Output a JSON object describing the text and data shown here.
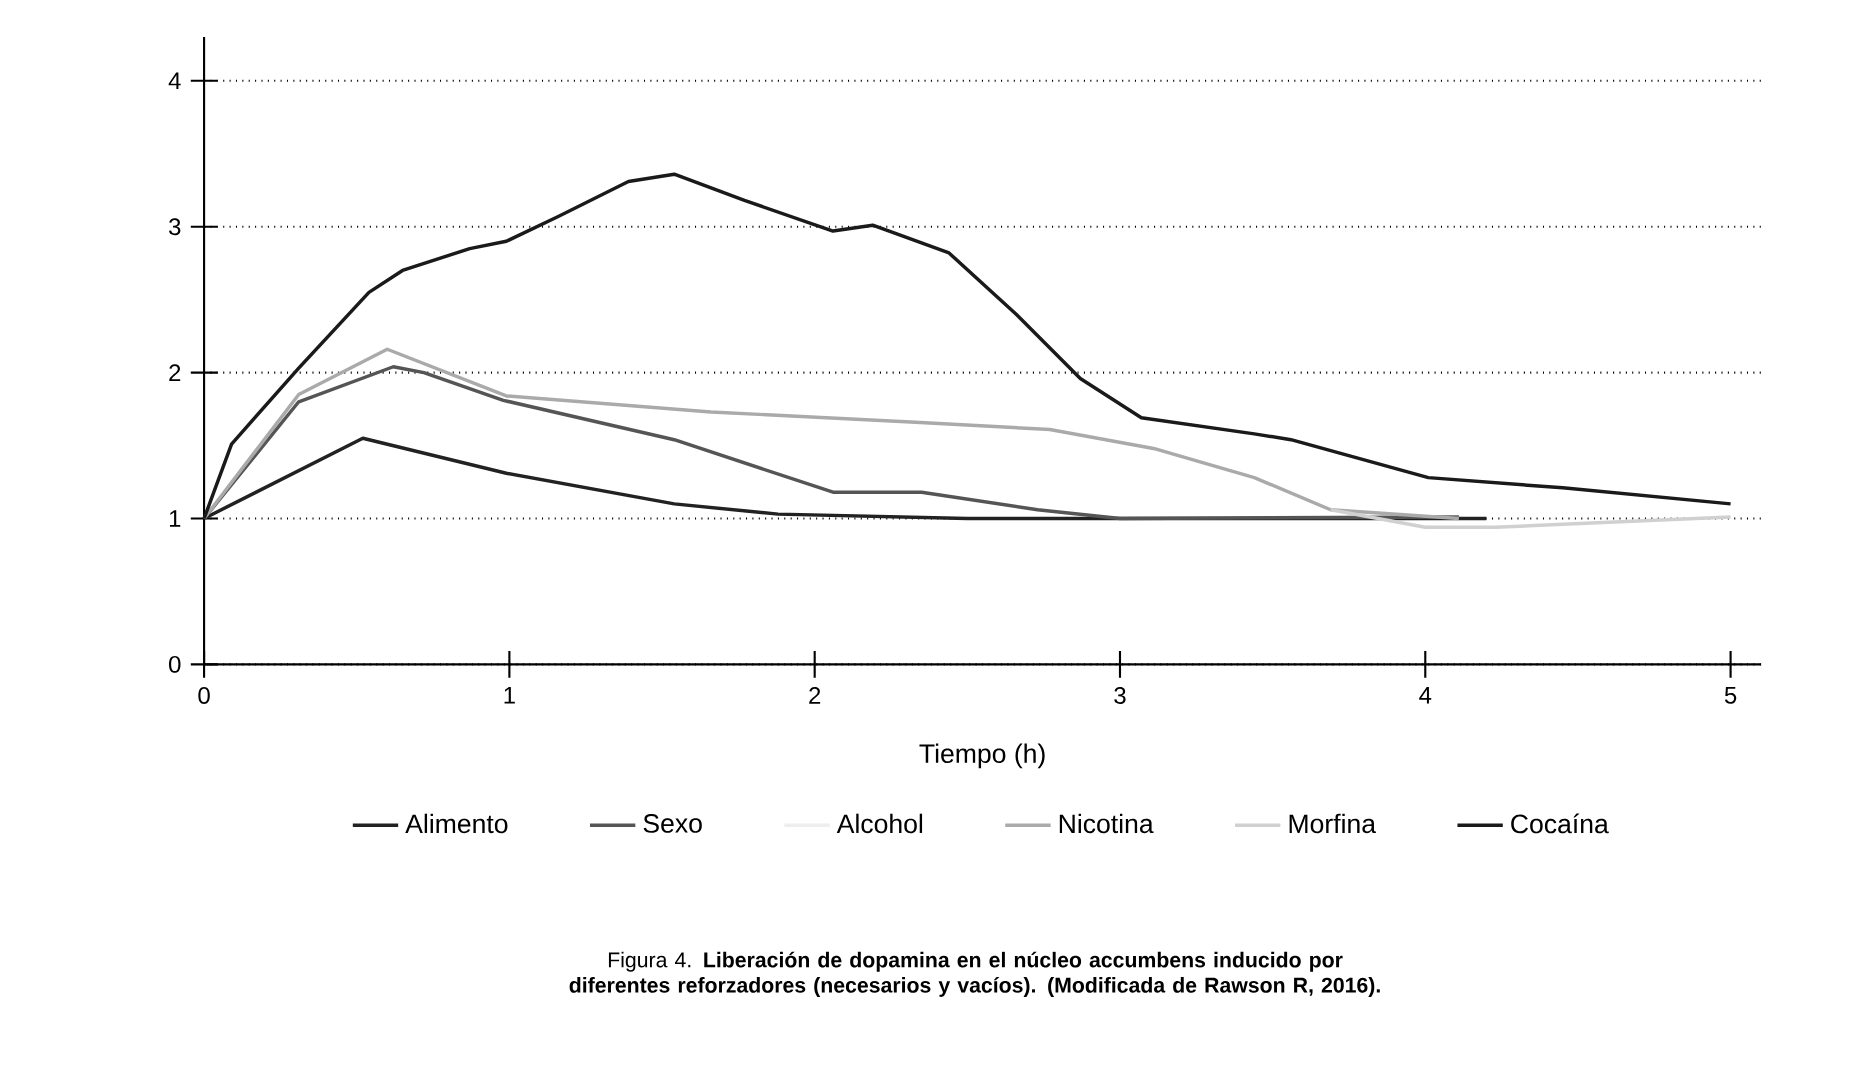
{
  "chart_data": {
    "type": "line",
    "xlabel": "Tiempo (h)",
    "xlim": [
      0,
      5.1
    ],
    "ylim": [
      0,
      4.3
    ],
    "xticks": [
      0,
      1,
      2,
      3,
      4,
      5
    ],
    "yticks": [
      0,
      1,
      2,
      3,
      4
    ],
    "grid": "y",
    "legend": "bottom",
    "line_style": "solid",
    "marker": "none",
    "annotations": [
      "Figura 4. **Liberación de dopamina en el núcleo accumbens inducido por diferentes reforzadores (necesarios y vacíos). (Modificada de Rawson R, 2016).**"
    ],
    "series": [
      {
        "name": "Alimento",
        "color": "#222222",
        "x": [
          0,
          0.52,
          0.99,
          1.54,
          1.88,
          2.5,
          3,
          4.2
        ],
        "values": [
          1,
          1.55,
          1.31,
          1.1,
          1.03,
          1.0,
          1.0,
          1.0
        ]
      },
      {
        "name": "Sexo",
        "color": "#555555",
        "x": [
          0,
          0.31,
          0.62,
          0.72,
          0.98,
          1.54,
          2.06,
          2.35,
          2.73,
          3,
          4.11
        ],
        "values": [
          1,
          1.8,
          2.04,
          2.0,
          1.81,
          1.54,
          1.18,
          1.18,
          1.06,
          1.0,
          1.01
        ]
      },
      {
        "name": "Alcohol",
        "color": "#eeeeee"
      },
      {
        "name": "Nicotina",
        "color": "#aaaaaa",
        "x": [
          0,
          0.31,
          0.6,
          0.99,
          1.66,
          2.33,
          2.77,
          3.11,
          3.44,
          3.69,
          4.11
        ],
        "values": [
          1,
          1.85,
          2.16,
          1.84,
          1.73,
          1.66,
          1.61,
          1.48,
          1.28,
          1.06,
          1.0
        ]
      },
      {
        "name": "Morfina",
        "color": "#d0d0d0",
        "x": [
          3.69,
          4.0,
          4.23,
          4.45,
          5.0
        ],
        "values": [
          1.06,
          0.94,
          0.94,
          0.96,
          1.01
        ]
      },
      {
        "name": "Cocaína",
        "color": "#1a1a1a",
        "x": [
          0,
          0.09,
          0.31,
          0.54,
          0.65,
          0.87,
          0.99,
          1.16,
          1.39,
          1.54,
          1.77,
          2.06,
          2.19,
          2.44,
          2.66,
          2.87,
          3.07,
          3.44,
          3.56,
          4.01,
          4.45,
          5.0
        ],
        "values": [
          1,
          1.51,
          2.03,
          2.55,
          2.7,
          2.85,
          2.9,
          3.07,
          3.31,
          3.36,
          3.18,
          2.97,
          3.01,
          2.82,
          2.4,
          1.96,
          1.69,
          1.58,
          1.54,
          1.28,
          1.21,
          1.1
        ]
      }
    ]
  }
}
